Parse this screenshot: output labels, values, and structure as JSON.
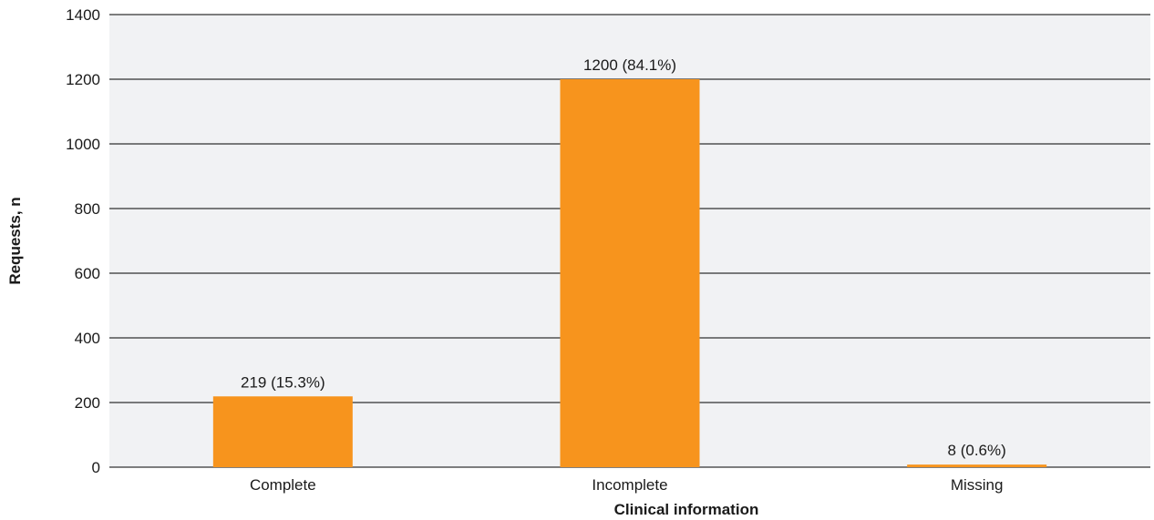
{
  "chart_data": {
    "type": "bar",
    "categories": [
      "Complete",
      "Incomplete",
      "Missing"
    ],
    "values": [
      219,
      1200,
      8
    ],
    "data_labels": [
      "219 (15.3%)",
      "1200 (84.1%)",
      "8 (0.6%)"
    ],
    "title": "",
    "xlabel": "Clinical information",
    "ylabel": "Requests, n",
    "ylim": [
      0,
      1400
    ],
    "yticks": [
      0,
      200,
      400,
      600,
      800,
      1000,
      1200,
      1400
    ],
    "ytick_labels": [
      "0",
      "200",
      "400",
      "600",
      "800",
      "1000",
      "1200",
      "1400"
    ],
    "grid": true,
    "colors": {
      "bar": "#F7941D",
      "plot_background": "#F1F2F4",
      "gridline": "#000000"
    }
  }
}
